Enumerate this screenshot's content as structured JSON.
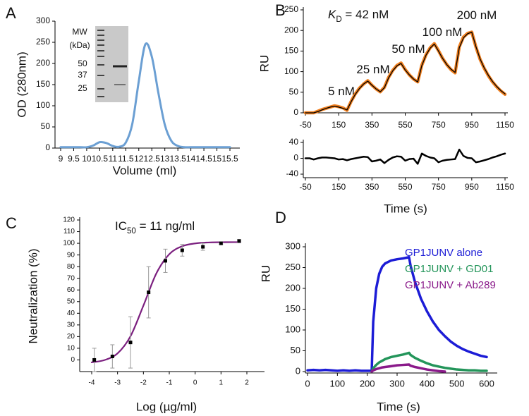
{
  "chart_data": [
    {
      "type": "line",
      "panel": "A",
      "xlabel": "Volume (ml)",
      "ylabel": "OD (280nm)",
      "inset_labels": [
        "MW",
        "(kDa)",
        "50",
        "37",
        "25"
      ],
      "x": [
        9,
        9.25,
        9.5,
        9.75,
        10,
        10.25,
        10.5,
        10.75,
        11,
        11.25,
        11.5,
        11.75,
        12,
        12.25,
        12.5,
        12.75,
        13,
        13.25,
        13.5,
        13.75,
        14,
        14.25,
        14.5,
        14.75,
        15,
        15.25,
        15.5
      ],
      "values": [
        2,
        2,
        2,
        2,
        2,
        6,
        14,
        12,
        5,
        3,
        13,
        57,
        158,
        245,
        216,
        131,
        55,
        17,
        5,
        2,
        2,
        2,
        2,
        2,
        2,
        2,
        2
      ],
      "color": "#6b9fd3",
      "xlim": [
        9,
        15.5
      ],
      "xticks": [
        9,
        9.5,
        10,
        10.5,
        11,
        11.5,
        12,
        12.5,
        13,
        13.5,
        14,
        14.5,
        15,
        15.5
      ],
      "ylim": [
        0,
        300
      ],
      "yticks": [
        0,
        50,
        100,
        150,
        200,
        250,
        300
      ]
    },
    {
      "type": "line",
      "panel": "B",
      "ylabel": "RU",
      "annotations": [
        [
          {
            "text": "K",
            "style": "italic"
          },
          {
            "text": "D",
            "style": "sub"
          },
          {
            "text": " = 42 nM"
          }
        ],
        [
          {
            "text": "5 nM"
          }
        ],
        [
          {
            "text": "25 nM"
          }
        ],
        [
          {
            "text": "50 nM"
          }
        ],
        [
          {
            "text": "100 nM"
          }
        ],
        [
          {
            "text": "200 nM"
          }
        ]
      ],
      "x": [
        -50,
        -25,
        0,
        25,
        50,
        75,
        100,
        125,
        150,
        175,
        200,
        225,
        250,
        275,
        300,
        325,
        350,
        375,
        400,
        425,
        450,
        475,
        500,
        525,
        550,
        575,
        600,
        625,
        650,
        675,
        700,
        725,
        750,
        775,
        800,
        825,
        850,
        875,
        900,
        925,
        950,
        975,
        1000,
        1025,
        1050,
        1075,
        1100,
        1125,
        1150
      ],
      "series": [
        {
          "color": "#f07f1e",
          "values": [
            0,
            0,
            0,
            4,
            8,
            11,
            14,
            17,
            15,
            12,
            6,
            28,
            46,
            60,
            70,
            78,
            67,
            58,
            51,
            62,
            86,
            103,
            115,
            121,
            105,
            92,
            82,
            75,
            116,
            141,
            158,
            168,
            151,
            132,
            117,
            105,
            97,
            160,
            184,
            193,
            196,
            160,
            130,
            108,
            90,
            75,
            63,
            53,
            45
          ]
        },
        {
          "color": "#000000",
          "values": [
            0,
            0,
            0,
            3,
            7,
            11,
            14,
            16,
            14,
            11,
            7,
            27,
            45,
            59,
            70,
            77,
            67,
            58,
            51,
            61,
            85,
            102,
            114,
            120,
            104,
            92,
            82,
            75,
            115,
            140,
            157,
            167,
            150,
            132,
            117,
            106,
            98,
            158,
            182,
            192,
            196,
            161,
            131,
            109,
            91,
            76,
            64,
            54,
            46
          ]
        }
      ],
      "xlim": [
        -50,
        1150
      ],
      "xticks": [
        -50,
        150,
        350,
        550,
        750,
        950,
        1150
      ],
      "ylim": [
        0,
        250
      ],
      "yticks": [
        0,
        50,
        100,
        150,
        200,
        250
      ]
    },
    {
      "type": "line",
      "xlabel": "Time (s)",
      "x": [
        -50,
        -25,
        0,
        25,
        50,
        75,
        100,
        125,
        150,
        175,
        200,
        225,
        250,
        275,
        300,
        325,
        350,
        375,
        400,
        425,
        450,
        475,
        500,
        525,
        550,
        575,
        600,
        625,
        650,
        675,
        700,
        725,
        750,
        775,
        800,
        825,
        850,
        875,
        900,
        925,
        950,
        975,
        1000,
        1025,
        1050,
        1075,
        1100,
        1125,
        1150
      ],
      "values": [
        0,
        0,
        -3,
        0,
        2,
        2,
        1,
        0,
        -3,
        -2,
        -5,
        -2,
        0,
        2,
        4,
        3,
        -8,
        -6,
        -3,
        -12,
        -4,
        2,
        5,
        4,
        -6,
        -2,
        -1,
        -14,
        12,
        6,
        2,
        0,
        -10,
        -6,
        -4,
        -3,
        -2,
        22,
        6,
        1,
        0,
        -10,
        -8,
        -5,
        -2,
        2,
        5,
        9,
        12
      ],
      "color": "#000000",
      "xlim": [
        -50,
        1150
      ],
      "xticks": [
        -50,
        150,
        350,
        550,
        750,
        950,
        1150
      ],
      "ylim": [
        -40,
        40
      ],
      "yticks": [
        -40,
        0,
        40
      ]
    },
    {
      "type": "scatter",
      "panel": "C",
      "xlabel": "Log (µg/ml)",
      "ylabel": "Neutralization (%)",
      "annotations": [
        [
          {
            "text": "IC"
          },
          {
            "text": "50",
            "style": "sub"
          },
          {
            "text": " = 11 ng/ml"
          }
        ]
      ],
      "x": [
        -3.9,
        -3.2,
        -2.5,
        -1.8,
        -1.15,
        -0.5,
        0.3,
        1,
        1.7
      ],
      "values": [
        0,
        3,
        15,
        58,
        85,
        94,
        97,
        100,
        102
      ],
      "errors": [
        10,
        10,
        22,
        22,
        10,
        5,
        3,
        1,
        1
      ],
      "color": "#000000",
      "error_color": "#999999",
      "fit": {
        "color": "#7b1f7f",
        "x": [
          -4,
          -3.5,
          -3,
          -2.5,
          -2,
          -1.5,
          -1,
          -0.5,
          0,
          0.5,
          1,
          1.5,
          1.75
        ],
        "values": [
          -2.1,
          -0.1,
          5.6,
          20.3,
          46.6,
          74.2,
          90.7,
          97.5,
          99.9,
          100.7,
          100.9,
          101,
          101
        ]
      },
      "xlim": [
        -4,
        2
      ],
      "xticks": [
        -4,
        -3,
        -2,
        -1,
        0,
        1,
        2
      ],
      "ylim": [
        -10,
        120
      ],
      "yticks": [
        0,
        10,
        20,
        30,
        40,
        50,
        60,
        70,
        80,
        90,
        100,
        110,
        120
      ]
    },
    {
      "type": "line",
      "panel": "D",
      "xlabel": "Time (s)",
      "ylabel": "RU",
      "legend": "top-right",
      "x": [
        0,
        20,
        40,
        60,
        80,
        100,
        120,
        140,
        160,
        180,
        200,
        215,
        220,
        230,
        240,
        250,
        260,
        280,
        300,
        320,
        340,
        345,
        360,
        380,
        400,
        420,
        440,
        460,
        480,
        500,
        520,
        540,
        560,
        580,
        600
      ],
      "series": [
        {
          "name": "GP1JUNV alone",
          "color": "#1c1cd6",
          "values": [
            3,
            4,
            3,
            4,
            3,
            2,
            3,
            2,
            3,
            2,
            2,
            2,
            120,
            200,
            235,
            252,
            260,
            267,
            270,
            272,
            275,
            255,
            215,
            175,
            145,
            120,
            100,
            85,
            72,
            62,
            54,
            48,
            43,
            38,
            35
          ]
        },
        {
          "name": "GP1JUNV + GD01",
          "color": "#23955a",
          "values": [
            null,
            null,
            null,
            null,
            null,
            null,
            null,
            null,
            null,
            null,
            null,
            0,
            8,
            16,
            22,
            26,
            30,
            35,
            38,
            41,
            45,
            40,
            33,
            26,
            20,
            15,
            12,
            9,
            7,
            5,
            4,
            3,
            3,
            2,
            2
          ]
        },
        {
          "name": "GP1JUNV + Ab289",
          "color": "#8a1a8a",
          "values": [
            null,
            null,
            null,
            null,
            null,
            null,
            null,
            null,
            null,
            null,
            null,
            0,
            3,
            6,
            8,
            10,
            11,
            13,
            15,
            16,
            17,
            14,
            11,
            8,
            5,
            3,
            1,
            0,
            null,
            null,
            null,
            null,
            null,
            null,
            null
          ]
        }
      ],
      "xlim": [
        0,
        600
      ],
      "xticks": [
        0,
        100,
        200,
        300,
        400,
        500,
        600
      ],
      "ylim": [
        0,
        300
      ],
      "yticks": [
        0,
        50,
        100,
        150,
        200,
        250,
        300
      ]
    }
  ]
}
